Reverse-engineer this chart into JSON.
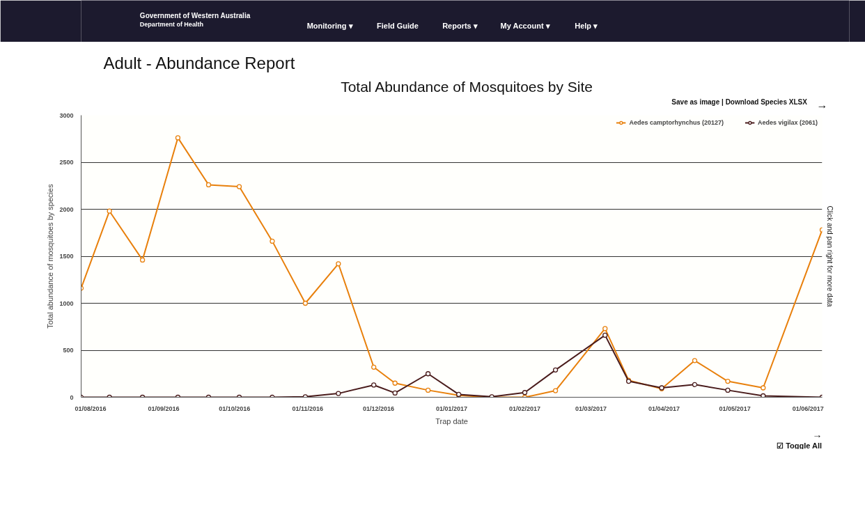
{
  "chart_data": {
    "type": "line",
    "title": "Total Abundance of Mosquitoes by Site",
    "xlabel": "Trap date",
    "ylabel": "Total abundance of mosquitoes by species",
    "annotations": [
      "Government of Western Australia",
      "Department of Health",
      "Monitoring ▾",
      "Field Guide",
      "Reports ▾",
      "My Account ▾",
      "Help ▾",
      "Adult - Abundance Report",
      "Save as image  |  Download Species XLSX",
      "Click and pan right for more data",
      "→",
      "→",
      "☑ Toggle All"
    ],
    "x": [
      "2016-07-28",
      "2016-08-09",
      "2016-08-23",
      "2016-09-07",
      "2016-09-20",
      "2016-10-03",
      "2016-10-17",
      "2016-10-31",
      "2016-11-14",
      "2016-11-29",
      "2016-12-08",
      "2016-12-22",
      "2017-01-04",
      "2017-01-18",
      "2017-02-01",
      "2017-02-14",
      "2017-03-07",
      "2017-03-17",
      "2017-03-31",
      "2017-04-14",
      "2017-04-28",
      "2017-05-13",
      "2017-06-07"
    ],
    "series": [
      {
        "name": "Aedes camptorhynchus (20127)",
        "color": "#e8800c",
        "values": [
          1160,
          1980,
          1460,
          2760,
          2260,
          2240,
          1660,
          1000,
          1420,
          320,
          150,
          75,
          20,
          0,
          0,
          70,
          730,
          180,
          90,
          390,
          170,
          100,
          1780
        ]
      },
      {
        "name": "Aedes vigilax (2061)",
        "color": "#4a1c1c",
        "values": [
          0,
          0,
          0,
          0,
          0,
          0,
          0,
          5,
          40,
          130,
          45,
          250,
          30,
          5,
          50,
          290,
          660,
          170,
          100,
          135,
          75,
          15,
          0
        ]
      }
    ],
    "xlim": [
      "2016-07-28",
      "2017-06-07"
    ],
    "xticks": [
      {
        "value": "2016-08-01",
        "label": "01/08/2016"
      },
      {
        "value": "2016-09-01",
        "label": "01/09/2016"
      },
      {
        "value": "2016-10-01",
        "label": "01/10/2016"
      },
      {
        "value": "2016-11-01",
        "label": "01/11/2016"
      },
      {
        "value": "2016-12-01",
        "label": "01/12/2016"
      },
      {
        "value": "2017-01-01",
        "label": "01/01/2017"
      },
      {
        "value": "2017-02-01",
        "label": "01/02/2017"
      },
      {
        "value": "2017-03-01",
        "label": "01/03/2017"
      },
      {
        "value": "2017-04-01",
        "label": "01/04/2017"
      },
      {
        "value": "2017-05-01",
        "label": "01/05/2017"
      },
      {
        "value": "2017-06-01",
        "label": "01/06/2017"
      }
    ],
    "ylim": [
      0,
      3000
    ],
    "yticks": [
      0,
      500,
      1000,
      1500,
      2000,
      2500,
      3000
    ],
    "grid": "y",
    "legend": "top right",
    "marker": "circle",
    "line_style": "solid"
  }
}
